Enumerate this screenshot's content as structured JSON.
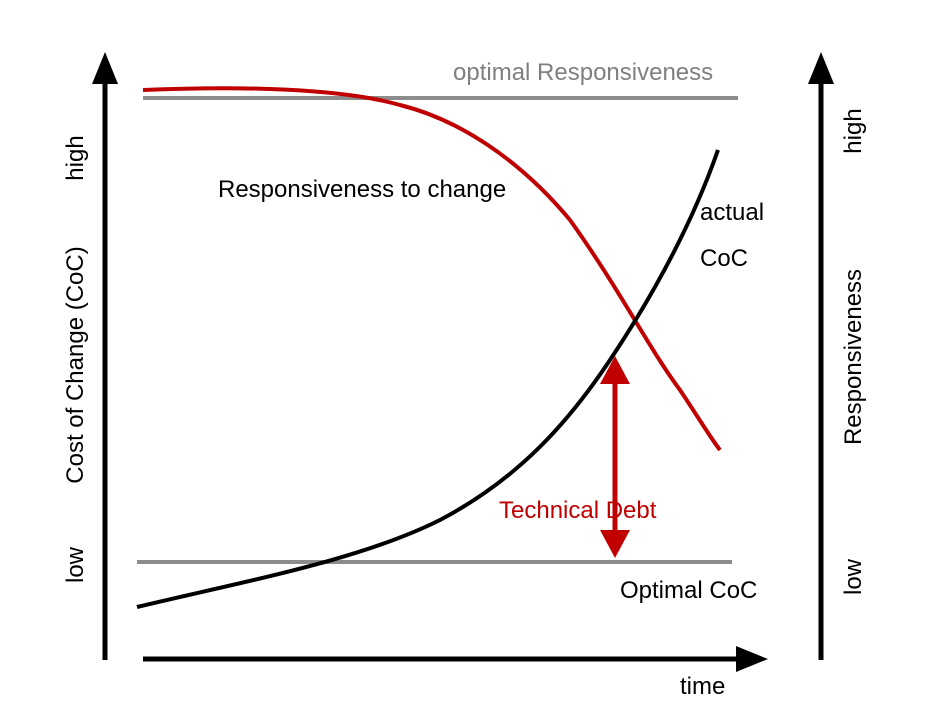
{
  "colors": {
    "axis": "#000000",
    "optimal_line": "#8c8c8c",
    "responsiveness_curve": "#c00000",
    "coc_curve": "#000000",
    "technical_debt": "#c00000",
    "optimal_label": "#7f7f7f"
  },
  "labels": {
    "optimal_responsiveness": "optimal Responsiveness",
    "responsiveness_to_change": "Responsiveness to change",
    "actual": "actual",
    "coc": "CoC",
    "technical_debt": "Technical Debt",
    "optimal_coc": "Optimal CoC",
    "time": "time"
  },
  "left_axis": {
    "title": "Cost of Change (CoC)",
    "high": "high",
    "low": "low"
  },
  "right_axis": {
    "title": "Responsiveness",
    "high": "high",
    "low": "low"
  }
}
